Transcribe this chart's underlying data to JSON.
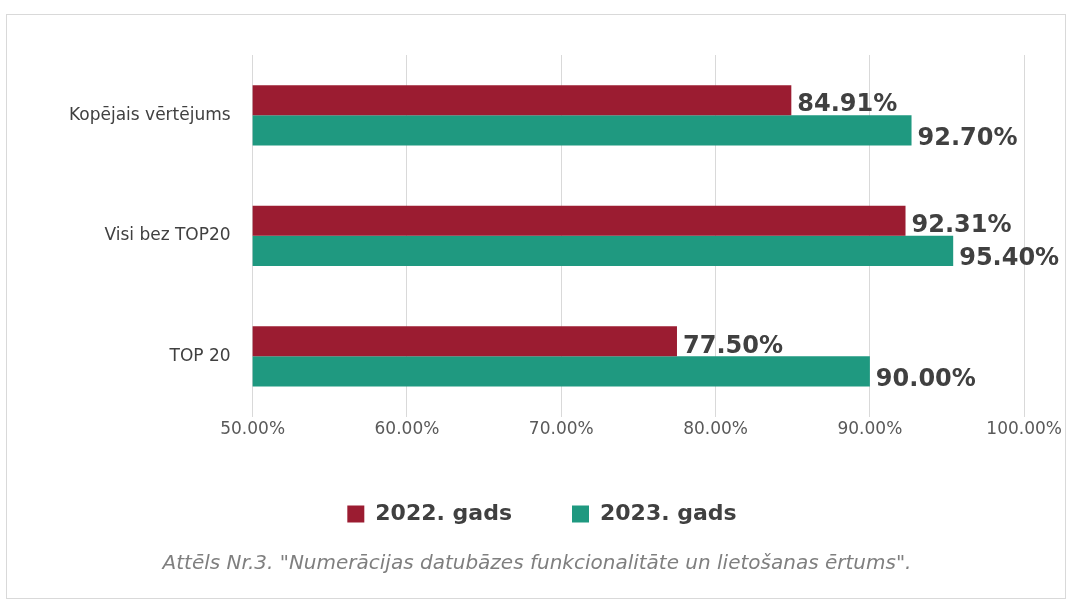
{
  "chart_data": {
    "type": "bar",
    "orientation": "horizontal",
    "categories": [
      "Kopējais vērtējums",
      "Visi bez TOP20",
      "TOP 20"
    ],
    "series": [
      {
        "name": "2022. gads",
        "color": "#9b1c31",
        "values": [
          84.91,
          92.31,
          77.5
        ],
        "value_labels": [
          "84.91%",
          "92.31%",
          "77.50%"
        ]
      },
      {
        "name": "2023. gads",
        "color": "#1f9980",
        "values": [
          92.7,
          95.4,
          90.0
        ],
        "value_labels": [
          "92.70%",
          "95.40%",
          "90.00%"
        ]
      }
    ],
    "xlim": [
      50,
      100
    ],
    "xticks": [
      {
        "value": 50,
        "label": "50.00%"
      },
      {
        "value": 60,
        "label": "60.00%"
      },
      {
        "value": 70,
        "label": "70.00%"
      },
      {
        "value": 80,
        "label": "80.00%"
      },
      {
        "value": 90,
        "label": "90.00%"
      },
      {
        "value": 100,
        "label": "100.00%"
      }
    ],
    "grid": "x",
    "legend": "bottom",
    "annotations": [
      "Attēls Nr.3. \"Numerācijas datubāzes funkcionalitāte un lietošanas ērtums\"."
    ]
  }
}
